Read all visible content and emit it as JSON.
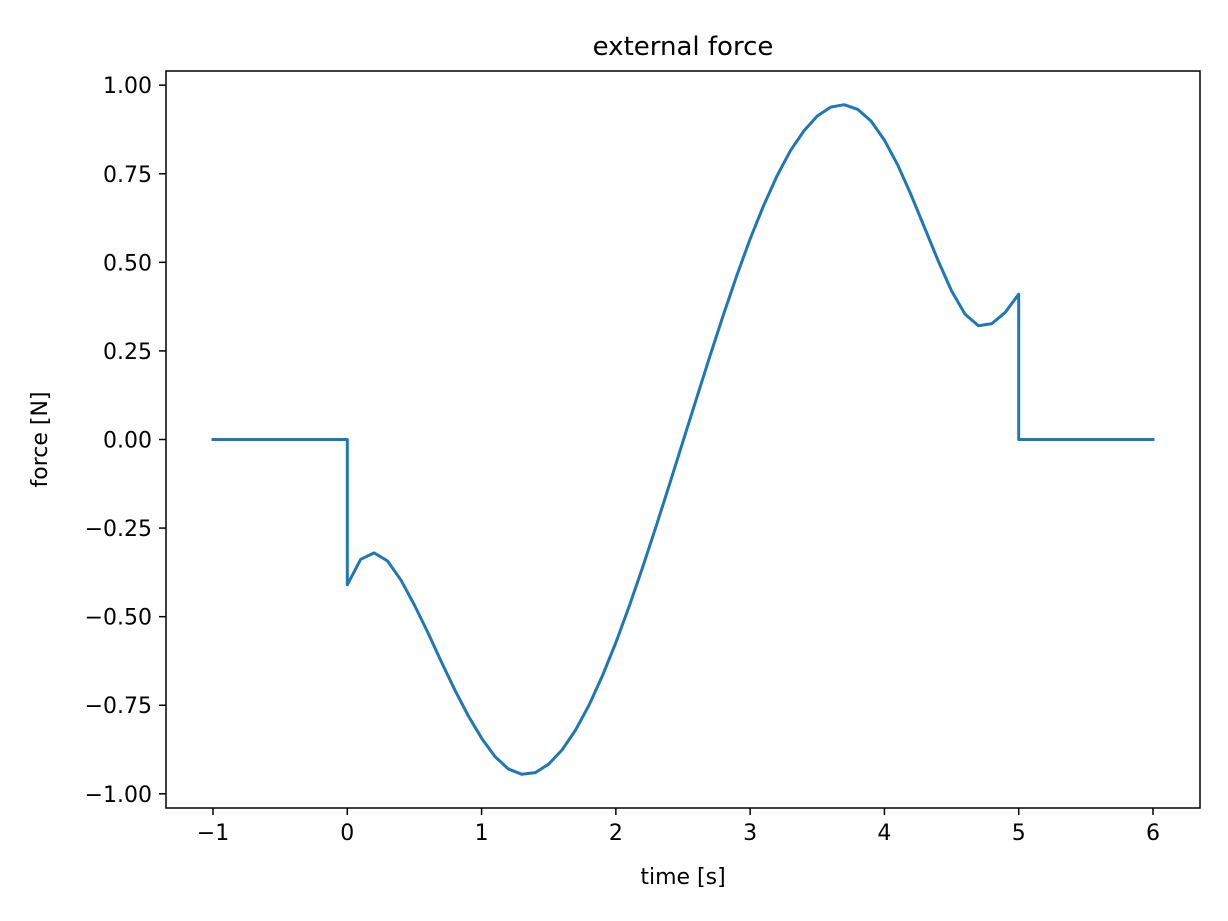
{
  "chart_data": {
    "type": "line",
    "title": "external force",
    "xlabel": "time [s]",
    "ylabel": "force [N]",
    "xlim": [
      -1.35,
      6.35
    ],
    "ylim": [
      -1.04,
      1.04
    ],
    "xticks": [
      -1,
      0,
      1,
      2,
      3,
      4,
      5,
      6
    ],
    "xtick_labels": [
      "−1",
      "0",
      "1",
      "2",
      "3",
      "4",
      "5",
      "6"
    ],
    "yticks": [
      -1.0,
      -0.75,
      -0.5,
      -0.25,
      0.0,
      0.25,
      0.5,
      0.75,
      1.0
    ],
    "ytick_labels": [
      "−1.00",
      "−0.75",
      "−0.50",
      "−0.25",
      "0.00",
      "0.25",
      "0.50",
      "0.75",
      "1.00"
    ],
    "grid": false,
    "series": [
      {
        "color": "#1f77b4",
        "x": [
          -1.0,
          -0.5,
          0.0,
          0.0,
          0.1,
          0.2,
          0.3,
          0.4,
          0.5,
          0.6,
          0.7,
          0.8,
          0.9,
          1.0,
          1.1,
          1.2,
          1.3,
          1.4,
          1.5,
          1.6,
          1.7,
          1.8,
          1.9,
          2.0,
          2.1,
          2.2,
          2.3,
          2.4,
          2.5,
          2.6,
          2.7,
          2.8,
          2.9,
          3.0,
          3.1,
          3.2,
          3.3,
          3.4,
          3.5,
          3.6,
          3.7,
          3.8,
          3.9,
          4.0,
          4.1,
          4.2,
          4.3,
          4.4,
          4.5,
          4.6,
          4.7,
          4.8,
          4.9,
          5.0,
          5.0,
          5.5,
          6.0
        ],
        "y": [
          0.0,
          0.0,
          0.0,
          -0.41,
          -0.338,
          -0.32,
          -0.343,
          -0.397,
          -0.467,
          -0.545,
          -0.627,
          -0.706,
          -0.779,
          -0.843,
          -0.895,
          -0.93,
          -0.945,
          -0.94,
          -0.916,
          -0.876,
          -0.82,
          -0.75,
          -0.667,
          -0.573,
          -0.47,
          -0.36,
          -0.245,
          -0.126,
          -0.005,
          0.115,
          0.235,
          0.351,
          0.462,
          0.566,
          0.66,
          0.744,
          0.815,
          0.871,
          0.913,
          0.938,
          0.945,
          0.932,
          0.899,
          0.845,
          0.774,
          0.689,
          0.597,
          0.505,
          0.419,
          0.354,
          0.321,
          0.327,
          0.359,
          0.41,
          0.0,
          0.0,
          0.0
        ]
      }
    ]
  }
}
